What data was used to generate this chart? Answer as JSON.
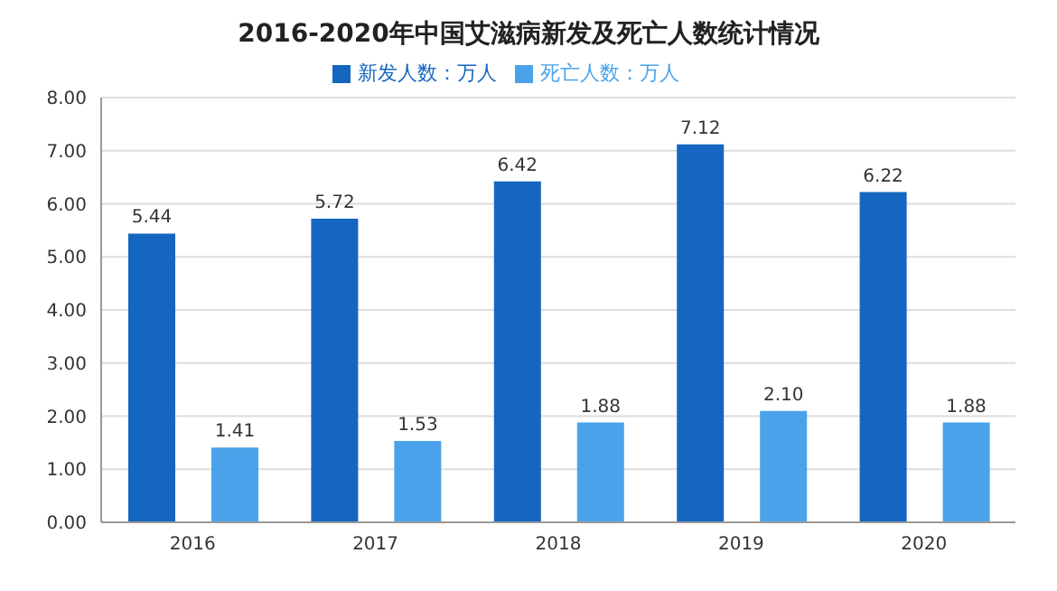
{
  "chart_data": {
    "type": "bar",
    "title": "2016-2020年中国艾滋病新发及死亡人数统计情况",
    "categories": [
      "2016",
      "2017",
      "2018",
      "2019",
      "2020"
    ],
    "series": [
      {
        "name": "新发人数：万人",
        "color": "#1566c0",
        "values": [
          5.44,
          5.72,
          6.42,
          7.12,
          6.22
        ],
        "value_labels": [
          "5.44",
          "5.72",
          "6.42",
          "7.12",
          "6.22"
        ]
      },
      {
        "name": "死亡人数：万人",
        "color": "#4aa3ea",
        "values": [
          1.41,
          1.53,
          1.88,
          2.1,
          1.88
        ],
        "value_labels": [
          "1.41",
          "1.53",
          "1.88",
          "2.10",
          "1.88"
        ]
      }
    ],
    "ylim": [
      0,
      8
    ],
    "yticks": [
      {
        "value": 0,
        "label": "0.00"
      },
      {
        "value": 1,
        "label": "1.00"
      },
      {
        "value": 2,
        "label": "2.00"
      },
      {
        "value": 3,
        "label": "3.00"
      },
      {
        "value": 4,
        "label": "4.00"
      },
      {
        "value": 5,
        "label": "5.00"
      },
      {
        "value": 6,
        "label": "6.00"
      },
      {
        "value": 7,
        "label": "7.00"
      },
      {
        "value": 8,
        "label": "8.00"
      }
    ],
    "grid": "y",
    "legend": "top"
  }
}
